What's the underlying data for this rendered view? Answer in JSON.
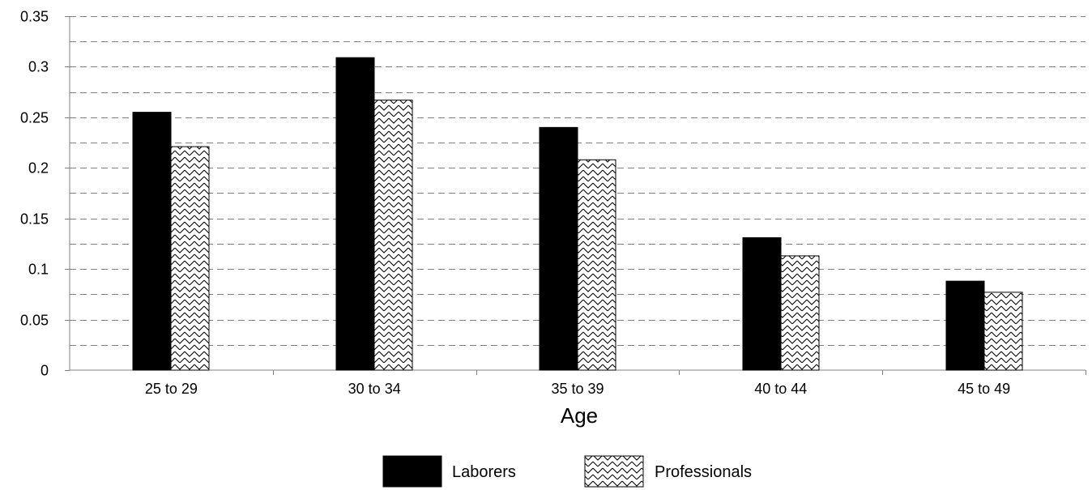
{
  "chart_data": {
    "type": "bar",
    "title": "",
    "xlabel": "Age",
    "ylabel": "",
    "categories": [
      "25 to 29",
      "30 to 34",
      "35 to 39",
      "40 to 44",
      "45 to 49"
    ],
    "series": [
      {
        "name": "Laborers",
        "values": [
          0.255,
          0.309,
          0.24,
          0.131,
          0.088
        ],
        "fill": "#000000"
      },
      {
        "name": "Professionals",
        "values": [
          0.221,
          0.267,
          0.208,
          0.113,
          0.077
        ],
        "fill": "zigzag-pattern"
      }
    ],
    "ylim": [
      0,
      0.35
    ],
    "yticks": [
      "0",
      "0.05",
      "0.1",
      "0.15",
      "0.2",
      "0.25",
      "0.3",
      "0.35"
    ],
    "grid": "dashed horizontal at every 0.025",
    "legend_position": "bottom-center"
  }
}
